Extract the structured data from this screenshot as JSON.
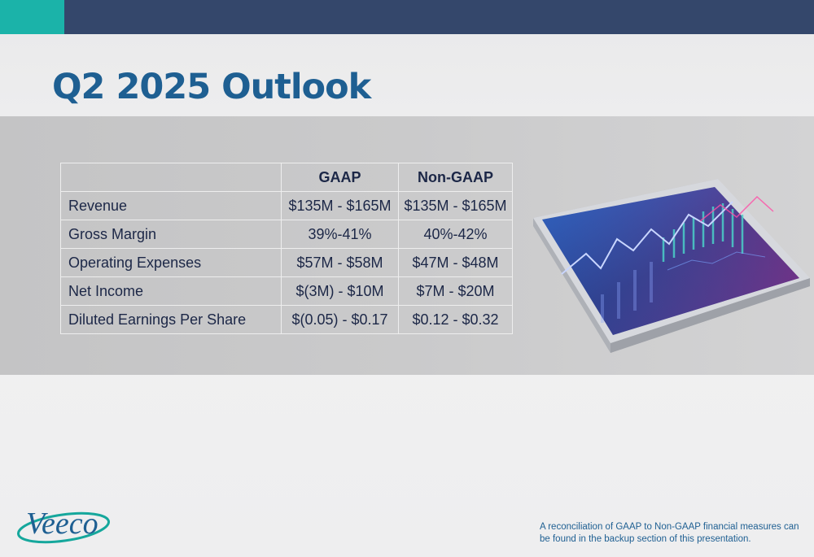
{
  "title": "Q2 2025 Outlook",
  "table": {
    "headers": [
      "",
      "GAAP",
      "Non-GAAP"
    ],
    "rows": [
      {
        "label": "Revenue",
        "gaap": "$135M - $165M",
        "non_gaap": "$135M - $165M"
      },
      {
        "label": "Gross Margin",
        "gaap": "39%-41%",
        "non_gaap": "40%-42%"
      },
      {
        "label": "Operating Expenses",
        "gaap": "$57M - $58M",
        "non_gaap": "$47M - $48M"
      },
      {
        "label": "Net Income",
        "gaap": "$(3M) - $10M",
        "non_gaap": "$7M - $20M"
      },
      {
        "label": "Diluted Earnings Per Share",
        "gaap": "$(0.05) - $0.17",
        "non_gaap": "$0.12 - $0.32"
      }
    ]
  },
  "logo": {
    "text": "Veeco"
  },
  "footnote": "A reconciliation of GAAP to Non-GAAP financial measures can be found in the backup section of this presentation.",
  "colors": {
    "top_bar": "#34476b",
    "top_bar_accent": "#1bb3a9",
    "title": "#1e5f92",
    "table_text": "#1c2747",
    "band": "#c7c7c8"
  },
  "icons": {
    "illustration": "financial-chart-tablet-icon",
    "logo": "veeco-logo"
  }
}
